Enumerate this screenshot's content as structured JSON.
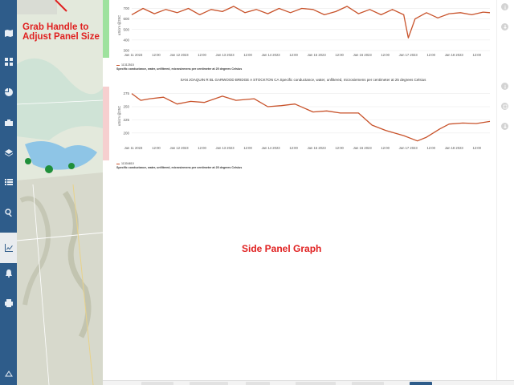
{
  "annotations": {
    "grab_handle": "Grab Handle to Adjust Panel Size",
    "side_panel": "Side Panel Graph"
  },
  "rail": {
    "icons": [
      "map-icon",
      "grid-icon",
      "pie-icon",
      "briefcase-icon",
      "layers-icon",
      "list-icon",
      "search-icon",
      "chart-icon",
      "bell-icon",
      "print-icon",
      "collapse-icon"
    ],
    "active": "chart-icon"
  },
  "colors": {
    "series": "#c8522a",
    "accent": "#2e5c8a",
    "annotation": "#e02020",
    "strip_top": "#9ee29e",
    "strip_bottom": "#f6cfcf"
  },
  "charts": [
    {
      "title": "",
      "legend_id": "11312515",
      "legend_desc": "Specific conductance, water, unfiltered, microsiemens per centimeter at 25 degrees Celsius"
    },
    {
      "title": "SAN JOAQUIN R BL GARWOOD BRIDGE A STOCKTON CA Specific conductance, water, unfiltered, microsiemens per centimeter at 25 degrees Celsius",
      "legend_id": "11304810",
      "legend_desc": "Specific conductance, water, unfiltered, microsiemens per centimeter at 25 degrees Celsius"
    }
  ],
  "chart_data": [
    {
      "type": "line",
      "title": "",
      "xlabel": "",
      "ylabel": "uS/cm @25C",
      "x_ticks": [
        "Jan 11 2023",
        "12:00",
        "Jan 12 2023",
        "12:00",
        "Jan 13 2023",
        "12:00",
        "Jan 14 2023",
        "12:00",
        "Jan 15 2023",
        "12:00",
        "Jan 16 2023",
        "12:00",
        "Jan 17 2023",
        "12:00",
        "Jan 18 2023",
        "12:00"
      ],
      "y_ticks": [
        300,
        400,
        500,
        600,
        700
      ],
      "ylim": [
        300,
        780
      ],
      "xlim": [
        0,
        7.9
      ],
      "series": [
        {
          "name": "11312515",
          "x": [
            0.0,
            0.25,
            0.5,
            0.75,
            1.0,
            1.25,
            1.5,
            1.75,
            2.0,
            2.25,
            2.5,
            2.75,
            3.0,
            3.25,
            3.5,
            3.75,
            4.0,
            4.25,
            4.5,
            4.75,
            5.0,
            5.25,
            5.5,
            5.75,
            6.0,
            6.1,
            6.25,
            6.5,
            6.75,
            7.0,
            7.25,
            7.5,
            7.75,
            7.9
          ],
          "values": [
            640,
            700,
            650,
            690,
            660,
            700,
            640,
            690,
            670,
            720,
            660,
            690,
            650,
            700,
            660,
            700,
            690,
            640,
            670,
            720,
            650,
            690,
            640,
            690,
            640,
            420,
            600,
            660,
            610,
            650,
            660,
            640,
            665,
            660
          ]
        }
      ]
    },
    {
      "type": "line",
      "title": "SAN JOAQUIN R BL GARWOOD BRIDGE A STOCKTON CA Specific conductance, water, unfiltered, microsiemens per centimeter at 25 degrees Celsius",
      "xlabel": "",
      "ylabel": "uS/cm @25C",
      "x_ticks": [
        "Jan 11 2023",
        "12:00",
        "Jan 12 2023",
        "12:00",
        "Jan 13 2023",
        "12:00",
        "Jan 14 2023",
        "12:00",
        "Jan 15 2023",
        "12:00",
        "Jan 16 2023",
        "12:00",
        "Jan 17 2023",
        "12:00",
        "Jan 18 2023",
        "12:00"
      ],
      "y_ticks": [
        200,
        225,
        250,
        275
      ],
      "ylim": [
        180,
        285
      ],
      "xlim": [
        0,
        7.9
      ],
      "series": [
        {
          "name": "11304810",
          "x": [
            0.0,
            0.2,
            0.4,
            0.7,
            1.0,
            1.3,
            1.6,
            2.0,
            2.3,
            2.7,
            3.0,
            3.3,
            3.6,
            4.0,
            4.3,
            4.6,
            5.0,
            5.3,
            5.6,
            6.0,
            6.3,
            6.5,
            6.8,
            7.0,
            7.3,
            7.6,
            7.9
          ],
          "values": [
            275,
            262,
            265,
            268,
            255,
            260,
            258,
            270,
            262,
            265,
            250,
            252,
            255,
            240,
            242,
            238,
            238,
            215,
            205,
            195,
            185,
            192,
            208,
            217,
            219,
            218,
            222
          ]
        }
      ]
    }
  ]
}
